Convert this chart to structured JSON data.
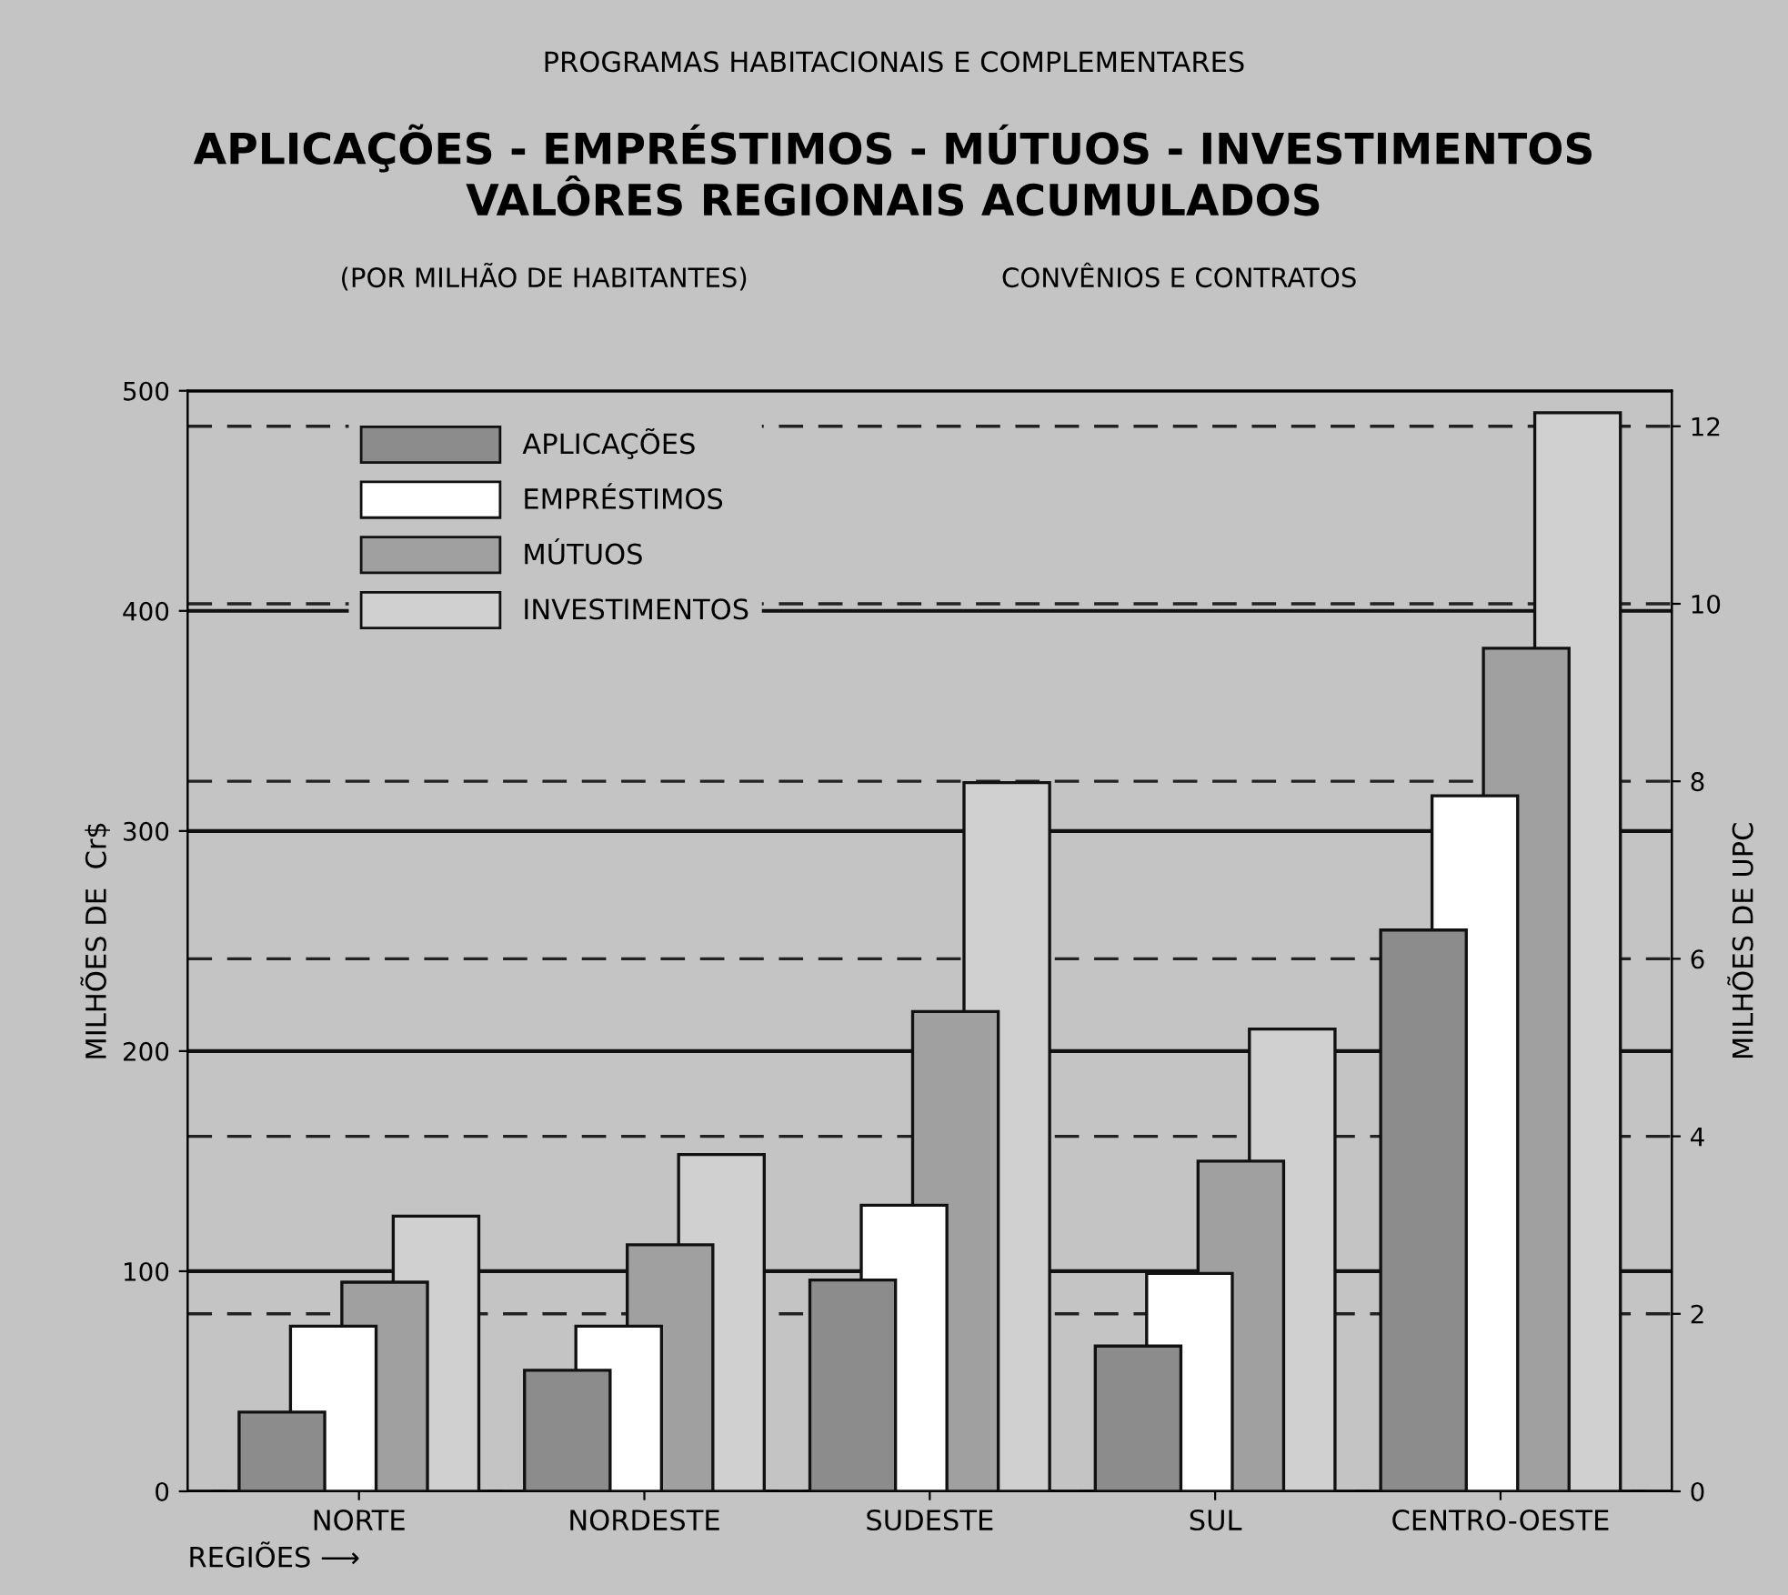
{
  "chart_data": {
    "type": "bar",
    "subtitle": "PROGRAMAS HABITACIONAIS E COMPLEMENTARES",
    "title": "APLICAÇÕES - EMPRÉSTIMOS - MÚTUOS - INVESTIMENTOS\nVALÔRES REGIONAIS ACUMULADOS",
    "annotations": [
      "(POR MILHÃO DE HABITANTES)",
      "CONVÊNIOS E CONTRATOS"
    ],
    "xlabel": "REGIÕES ⟶",
    "ylabel": "MILHÕES DE  Cr$",
    "y2label": "MILHÕES DE UPC",
    "categories": [
      "NORTE",
      "NORDESTE",
      "SUDESTE",
      "SUL",
      "CENTRO-OESTE"
    ],
    "series": [
      {
        "name": "APLICAÇÕES",
        "color": "#8c8c8c",
        "values": [
          36,
          55,
          96,
          66,
          255
        ]
      },
      {
        "name": "EMPRÉSTIMOS",
        "color": "#ffffff",
        "values": [
          75,
          75,
          130,
          99,
          316
        ]
      },
      {
        "name": "MÚTUOS",
        "color": "#a0a0a0",
        "values": [
          95,
          112,
          218,
          150,
          383
        ]
      },
      {
        "name": "INVESTIMENTOS",
        "color": "#d0d0d0",
        "values": [
          125,
          153,
          322,
          210,
          490
        ]
      }
    ],
    "ylim": [
      0,
      500
    ],
    "yticks": [
      0,
      100,
      200,
      300,
      400,
      500
    ],
    "y2lim": [
      0,
      12.4
    ],
    "y2ticks": [
      0,
      2,
      4,
      6,
      8,
      10,
      12
    ],
    "grid": true,
    "legend": "top left"
  }
}
